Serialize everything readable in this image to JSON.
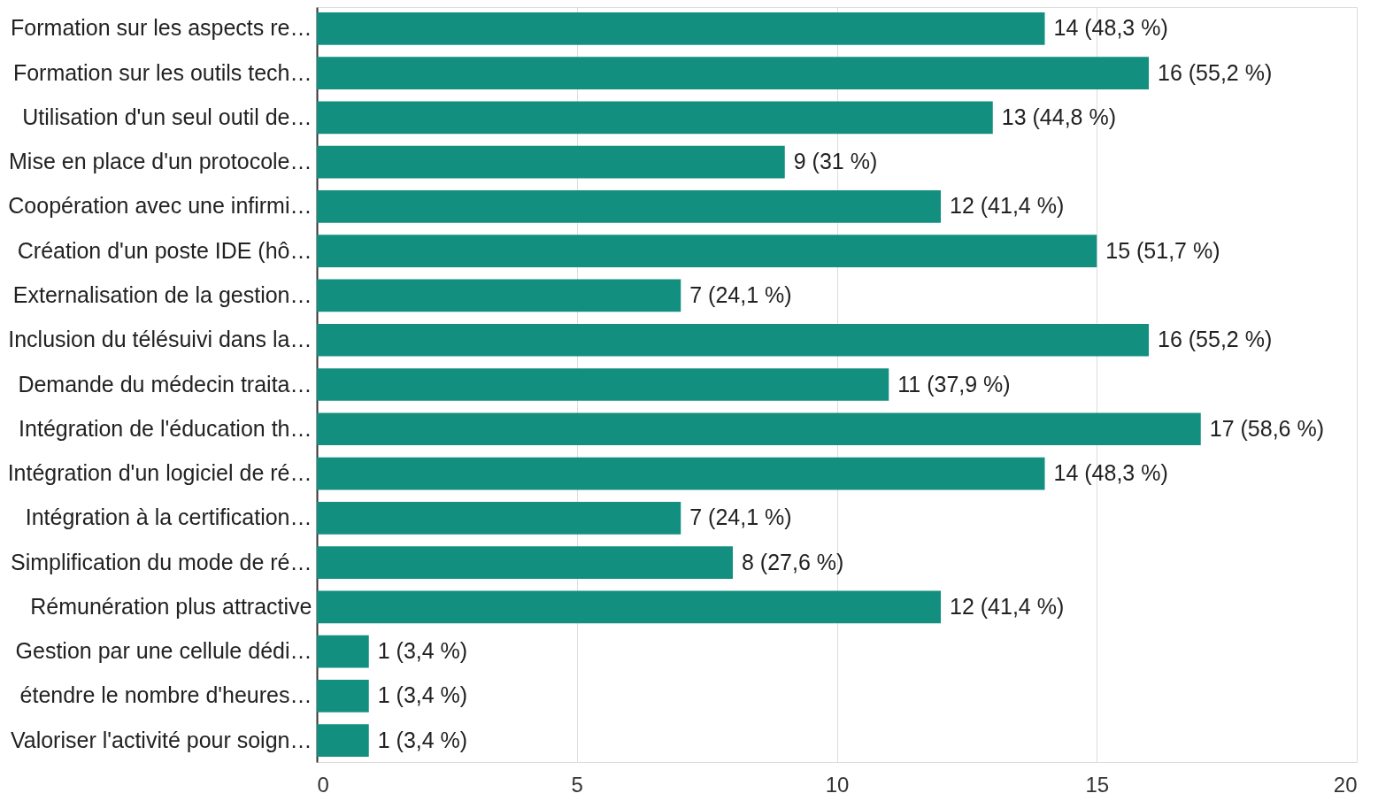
{
  "chart_data": {
    "type": "bar",
    "orientation": "horizontal",
    "categories": [
      "Formation sur les aspects re…",
      "Formation sur les outils tech…",
      "Utilisation d'un seul outil de…",
      "Mise en place d'un protocole…",
      "Coopération avec une infirmi…",
      "Création d'un poste IDE (hô…",
      "Externalisation de la gestion…",
      "Inclusion du télésuivi dans la…",
      "Demande du médecin traita…",
      "Intégration de l'éducation th…",
      "Intégration d'un logiciel de ré…",
      "Intégration à la certification…",
      "Simplification du mode de ré…",
      "Rémunération plus attractive",
      "Gestion par une cellule dédi…",
      "étendre le nombre d'heures…",
      "Valoriser l'activité pour soign…"
    ],
    "values": [
      14,
      16,
      13,
      9,
      12,
      15,
      7,
      16,
      11,
      17,
      14,
      7,
      8,
      12,
      1,
      1,
      1
    ],
    "value_labels": [
      "14 (48,3 %)",
      "16 (55,2 %)",
      "13 (44,8 %)",
      "9 (31 %)",
      "12 (41,4 %)",
      "15 (51,7 %)",
      "7 (24,1 %)",
      "16 (55,2 %)",
      "11 (37,9 %)",
      "17 (58,6 %)",
      "14 (48,3 %)",
      "7 (24,1 %)",
      "8 (27,6 %)",
      "12 (41,4 %)",
      "1 (3,4 %)",
      "1 (3,4 %)",
      "1 (3,4 %)"
    ],
    "color": "#138f7f",
    "xlim": [
      0,
      20
    ],
    "xticks": [
      0,
      5,
      10,
      15,
      20
    ],
    "grid": "x"
  }
}
